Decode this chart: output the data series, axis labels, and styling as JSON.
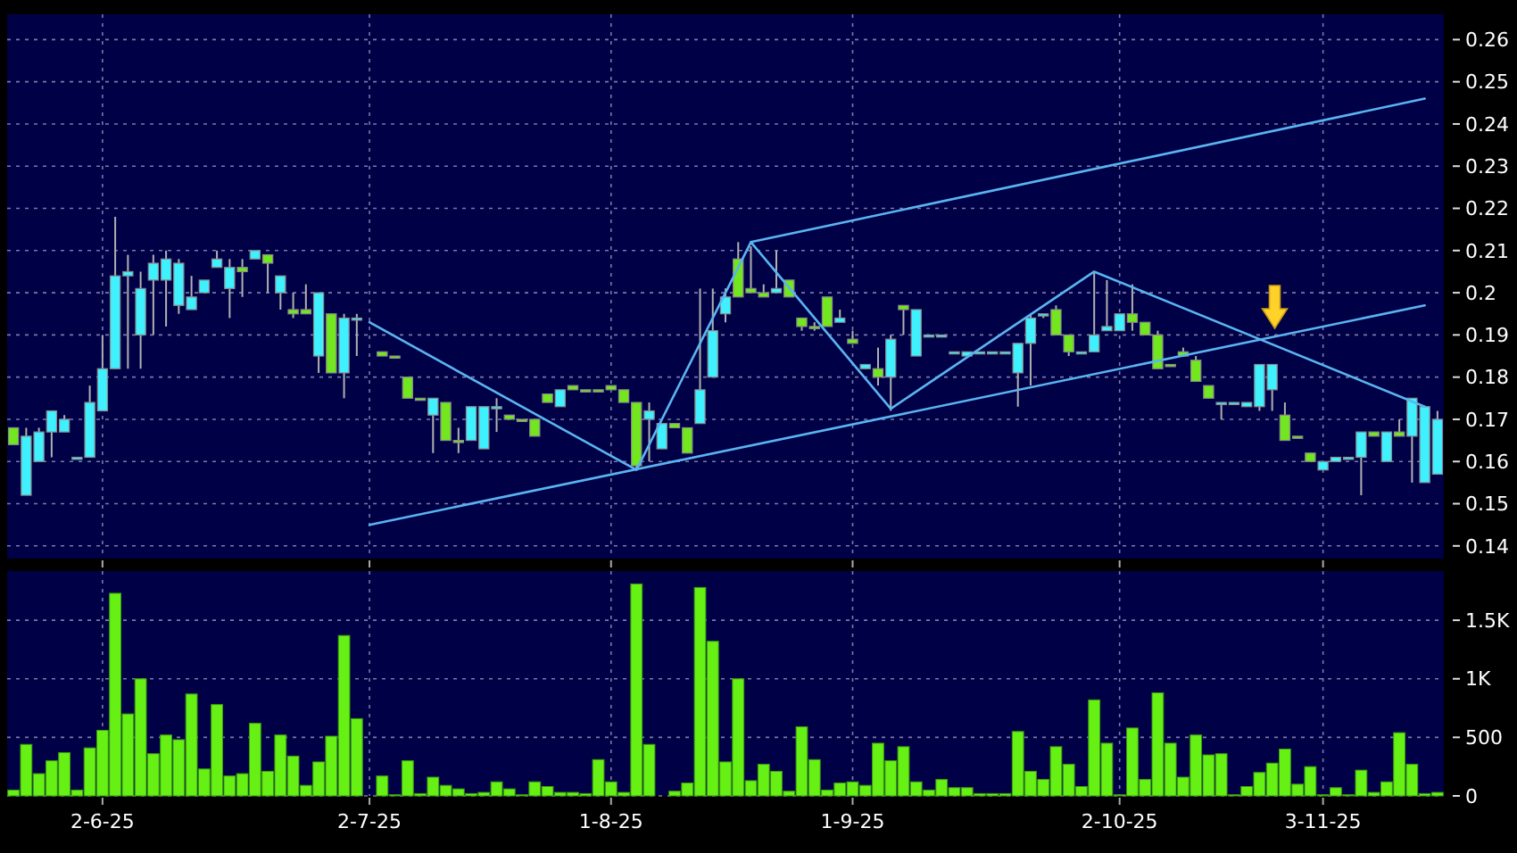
{
  "chart_data": [
    {
      "type": "candlestick",
      "tick_labels": "y",
      "grid": true,
      "categories": [
        null,
        null,
        null,
        null,
        null,
        null,
        null,
        null,
        null,
        null,
        null,
        null,
        null,
        null,
        null,
        null,
        null,
        null,
        null,
        null,
        null,
        null,
        null,
        null,
        null,
        null,
        null,
        null,
        null,
        null,
        null,
        null,
        null,
        null,
        null,
        null,
        null,
        null,
        null,
        null,
        null,
        null,
        null,
        null,
        null,
        null,
        null,
        null,
        null,
        null,
        null,
        null,
        null,
        null,
        null,
        null,
        null,
        null,
        null,
        null,
        null,
        null,
        null,
        null,
        null,
        null,
        null,
        null,
        null,
        null,
        null,
        null,
        null,
        null,
        null,
        null,
        null,
        null,
        null,
        null,
        null,
        null,
        null,
        null,
        null,
        null,
        null,
        null,
        null,
        null,
        null,
        null,
        null,
        null,
        null,
        null,
        null,
        null,
        null,
        null,
        null,
        null,
        null,
        null,
        null,
        null,
        null,
        null,
        null,
        null,
        null,
        null,
        null
      ],
      "ylim": [
        0.137,
        0.266
      ],
      "yticks": [
        0.14,
        0.15,
        0.16,
        0.17,
        0.18,
        0.19,
        0.2,
        0.21,
        0.22,
        0.23,
        0.24,
        0.25,
        0.26
      ],
      "colors": [
        "#72e61e",
        "#3ff0ff",
        "#3ff0ff",
        "#3ff0ff",
        "#3ff0ff",
        "#3ff0ff",
        "#3ff0ff",
        "#3ff0ff",
        "#3ff0ff",
        "#3ff0ff",
        "#3ff0ff",
        "#3ff0ff",
        "#3ff0ff",
        "#3ff0ff",
        "#3ff0ff",
        "#3ff0ff",
        "#3ff0ff",
        "#3ff0ff",
        "#72e61e",
        "#3ff0ff",
        "#72e61e",
        "#3ff0ff",
        "#72e61e",
        "#72e61e",
        "#3ff0ff",
        "#72e61e",
        "#3ff0ff",
        "#3ff0ff",
        null,
        "#72e61e",
        "#72e61e",
        "#72e61e",
        "#72e61e",
        "#3ff0ff",
        "#72e61e",
        "#72e61e",
        "#3ff0ff",
        "#3ff0ff",
        "#3ff0ff",
        "#72e61e",
        "#72e61e",
        "#72e61e",
        "#72e61e",
        "#3ff0ff",
        "#72e61e",
        "#72e61e",
        "#72e61e",
        "#72e61e",
        "#72e61e",
        "#72e61e",
        "#3ff0ff",
        "#3ff0ff",
        "#72e61e",
        "#72e61e",
        "#3ff0ff",
        "#3ff0ff",
        "#3ff0ff",
        "#72e61e",
        "#72e61e",
        "#72e61e",
        "#3ff0ff",
        "#72e61e",
        "#72e61e",
        "#72e61e",
        "#72e61e",
        "#3ff0ff",
        "#72e61e",
        "#3ff0ff",
        "#72e61e",
        "#3ff0ff",
        "#72e61e",
        "#3ff0ff",
        "#3ff0ff",
        "#3ff0ff",
        "#3ff0ff",
        "#3ff0ff",
        "#3ff0ff",
        "#3ff0ff",
        "#3ff0ff",
        "#3ff0ff",
        "#3ff0ff",
        "#3ff0ff",
        "#72e61e",
        "#72e61e",
        "#3ff0ff",
        "#3ff0ff",
        "#3ff0ff",
        "#3ff0ff",
        "#72e61e",
        "#72e61e",
        "#72e61e",
        "#72e61e",
        "#72e61e",
        "#72e61e",
        "#72e61e",
        "#3ff0ff",
        "#3ff0ff",
        "#3ff0ff",
        "#3ff0ff",
        "#3ff0ff",
        "#72e61e",
        "#72e61e",
        "#72e61e",
        "#3ff0ff",
        "#3ff0ff",
        "#3ff0ff",
        "#3ff0ff",
        "#72e61e",
        "#3ff0ff",
        "#72e61e",
        "#3ff0ff",
        "#3ff0ff",
        "#3ff0ff"
      ],
      "ohlc": [
        [
          0.168,
          0.168,
          0.164,
          0.164
        ],
        [
          0.152,
          0.168,
          0.152,
          0.166
        ],
        [
          0.16,
          0.168,
          0.16,
          0.167
        ],
        [
          0.167,
          0.172,
          0.161,
          0.172
        ],
        [
          0.167,
          0.171,
          0.167,
          0.17
        ],
        [
          0.161,
          0.161,
          0.161,
          0.161
        ],
        [
          0.161,
          0.178,
          0.161,
          0.174
        ],
        [
          0.172,
          0.19,
          0.172,
          0.182
        ],
        [
          0.182,
          0.218,
          0.182,
          0.204
        ],
        [
          0.204,
          0.209,
          0.182,
          0.205
        ],
        [
          0.19,
          0.205,
          0.182,
          0.201
        ],
        [
          0.203,
          0.209,
          0.19,
          0.207
        ],
        [
          0.203,
          0.21,
          0.192,
          0.208
        ],
        [
          0.197,
          0.208,
          0.195,
          0.207
        ],
        [
          0.196,
          0.204,
          0.196,
          0.199
        ],
        [
          0.2,
          0.203,
          0.2,
          0.203
        ],
        [
          0.206,
          0.21,
          0.206,
          0.208
        ],
        [
          0.201,
          0.208,
          0.194,
          0.206
        ],
        [
          0.206,
          0.208,
          0.199,
          0.205
        ],
        [
          0.208,
          0.21,
          0.208,
          0.21
        ],
        [
          0.209,
          0.209,
          0.2,
          0.207
        ],
        [
          0.2,
          0.204,
          0.196,
          0.204
        ],
        [
          0.196,
          0.2,
          0.194,
          0.195
        ],
        [
          0.196,
          0.202,
          0.195,
          0.195
        ],
        [
          0.185,
          0.2,
          0.181,
          0.2
        ],
        [
          0.195,
          0.195,
          0.181,
          0.181
        ],
        [
          0.181,
          0.195,
          0.175,
          0.194
        ],
        [
          0.194,
          0.195,
          0.185,
          0.194
        ],
        null,
        [
          0.186,
          0.186,
          0.185,
          0.185
        ],
        [
          0.185,
          0.185,
          0.185,
          0.185
        ],
        [
          0.18,
          0.18,
          0.175,
          0.175
        ],
        [
          0.175,
          0.175,
          0.175,
          0.175
        ],
        [
          0.171,
          0.175,
          0.162,
          0.175
        ],
        [
          0.174,
          0.174,
          0.165,
          0.165
        ],
        [
          0.165,
          0.168,
          0.162,
          0.165
        ],
        [
          0.165,
          0.173,
          0.165,
          0.173
        ],
        [
          0.163,
          0.173,
          0.163,
          0.173
        ],
        [
          0.173,
          0.175,
          0.167,
          0.173
        ],
        [
          0.171,
          0.171,
          0.17,
          0.17
        ],
        [
          0.17,
          0.17,
          0.17,
          0.17
        ],
        [
          0.17,
          0.17,
          0.166,
          0.166
        ],
        [
          0.176,
          0.176,
          0.174,
          0.174
        ],
        [
          0.173,
          0.177,
          0.173,
          0.177
        ],
        [
          0.178,
          0.178,
          0.177,
          0.177
        ],
        [
          0.177,
          0.177,
          0.177,
          0.177
        ],
        [
          0.177,
          0.177,
          0.177,
          0.177
        ],
        [
          0.178,
          0.178,
          0.177,
          0.177
        ],
        [
          0.177,
          0.177,
          0.174,
          0.174
        ],
        [
          0.174,
          0.174,
          0.158,
          0.159
        ],
        [
          0.17,
          0.174,
          0.16,
          0.172
        ],
        [
          0.163,
          0.169,
          0.163,
          0.169
        ],
        [
          0.169,
          0.169,
          0.168,
          0.168
        ],
        [
          0.168,
          0.168,
          0.162,
          0.162
        ],
        [
          0.169,
          0.201,
          0.169,
          0.177
        ],
        [
          0.18,
          0.201,
          0.18,
          0.191
        ],
        [
          0.195,
          0.201,
          0.193,
          0.199
        ],
        [
          0.208,
          0.212,
          0.199,
          0.199
        ],
        [
          0.201,
          0.211,
          0.2,
          0.2
        ],
        [
          0.2,
          0.202,
          0.199,
          0.199
        ],
        [
          0.2,
          0.21,
          0.2,
          0.201
        ],
        [
          0.203,
          0.203,
          0.199,
          0.199
        ],
        [
          0.194,
          0.194,
          0.191,
          0.192
        ],
        [
          0.192,
          0.193,
          0.191,
          0.192
        ],
        [
          0.199,
          0.199,
          0.192,
          0.192
        ],
        [
          0.193,
          0.196,
          0.193,
          0.194
        ],
        [
          0.189,
          0.191,
          0.188,
          0.188
        ],
        [
          0.182,
          0.183,
          0.182,
          0.183
        ],
        [
          0.182,
          0.187,
          0.178,
          0.18
        ],
        [
          0.18,
          0.19,
          0.172,
          0.189
        ],
        [
          0.197,
          0.197,
          0.19,
          0.196
        ],
        [
          0.185,
          0.196,
          0.185,
          0.196
        ],
        [
          0.19,
          0.19,
          0.19,
          0.19
        ],
        [
          0.19,
          0.19,
          0.19,
          0.19
        ],
        [
          0.186,
          0.186,
          0.186,
          0.186
        ],
        [
          0.185,
          0.186,
          0.185,
          0.186
        ],
        [
          0.186,
          0.186,
          0.186,
          0.186
        ],
        [
          0.186,
          0.186,
          0.186,
          0.186
        ],
        [
          0.186,
          0.186,
          0.186,
          0.186
        ],
        [
          0.181,
          0.188,
          0.173,
          0.188
        ],
        [
          0.188,
          0.195,
          0.178,
          0.194
        ],
        [
          0.195,
          0.195,
          0.194,
          0.195
        ],
        [
          0.196,
          0.197,
          0.19,
          0.19
        ],
        [
          0.19,
          0.19,
          0.185,
          0.186
        ],
        [
          0.186,
          0.186,
          0.186,
          0.186
        ],
        [
          0.186,
          0.205,
          0.186,
          0.19
        ],
        [
          0.191,
          0.203,
          0.191,
          0.192
        ],
        [
          0.191,
          0.195,
          0.191,
          0.195
        ],
        [
          0.195,
          0.202,
          0.191,
          0.193
        ],
        [
          0.193,
          0.193,
          0.19,
          0.19
        ],
        [
          0.19,
          0.191,
          0.182,
          0.182
        ],
        [
          0.183,
          0.183,
          0.183,
          0.183
        ],
        [
          0.186,
          0.187,
          0.185,
          0.185
        ],
        [
          0.184,
          0.185,
          0.179,
          0.179
        ],
        [
          0.178,
          0.178,
          0.175,
          0.175
        ],
        [
          0.174,
          0.174,
          0.17,
          0.174
        ],
        [
          0.174,
          0.174,
          0.174,
          0.174
        ],
        [
          0.173,
          0.174,
          0.173,
          0.174
        ],
        [
          0.173,
          0.183,
          0.172,
          0.183
        ],
        [
          0.177,
          0.183,
          0.172,
          0.183
        ],
        [
          0.171,
          0.174,
          0.165,
          0.165
        ],
        [
          0.166,
          0.166,
          0.166,
          0.166
        ],
        [
          0.162,
          0.162,
          0.16,
          0.16
        ],
        [
          0.158,
          0.16,
          0.158,
          0.16
        ],
        [
          0.16,
          0.161,
          0.16,
          0.161
        ],
        [
          0.161,
          0.161,
          0.161,
          0.161
        ],
        [
          0.161,
          0.167,
          0.152,
          0.167
        ],
        [
          0.167,
          0.167,
          0.166,
          0.166
        ],
        [
          0.16,
          0.167,
          0.16,
          0.167
        ],
        [
          0.167,
          0.17,
          0.166,
          0.166
        ],
        [
          0.166,
          0.175,
          0.155,
          0.175
        ],
        [
          0.155,
          0.173,
          0.155,
          0.173
        ],
        [
          0.157,
          0.172,
          0.157,
          0.17
        ]
      ],
      "series": [
        {
          "type": "line",
          "color": "#5ab4f0",
          "values": [
            null,
            null,
            null,
            null,
            null,
            null,
            null,
            null,
            null,
            null,
            null,
            null,
            null,
            null,
            null,
            null,
            null,
            null,
            null,
            null,
            null,
            null,
            null,
            null,
            null,
            null,
            null,
            null,
            null,
            null,
            null,
            null,
            null,
            null,
            null,
            null,
            null,
            null,
            null,
            null,
            null,
            null,
            null,
            null,
            null,
            null,
            null,
            null,
            null,
            null,
            null,
            null,
            null,
            null,
            null,
            null,
            null,
            null,
            0.212,
            null,
            null,
            null,
            null,
            null,
            null,
            null,
            null,
            null,
            null,
            null,
            null,
            null,
            null,
            null,
            null,
            null,
            null,
            null,
            null,
            null,
            null,
            null,
            null,
            null,
            null,
            null,
            null,
            null,
            null,
            null,
            null,
            null,
            null,
            null,
            null,
            null,
            null,
            null,
            null,
            null,
            null,
            null,
            null,
            null,
            null,
            null,
            null,
            null,
            null,
            null,
            null,
            0.246,
            null
          ]
        },
        {
          "type": "line",
          "color": "#5ab4f0",
          "values": [
            null,
            null,
            null,
            null,
            null,
            null,
            null,
            null,
            null,
            null,
            null,
            null,
            null,
            null,
            null,
            null,
            null,
            null,
            null,
            null,
            null,
            null,
            null,
            null,
            null,
            null,
            null,
            null,
            0.145,
            null,
            null,
            null,
            null,
            null,
            null,
            null,
            null,
            null,
            null,
            null,
            null,
            null,
            null,
            null,
            null,
            null,
            null,
            null,
            null,
            null,
            null,
            null,
            null,
            null,
            null,
            null,
            null,
            null,
            null,
            null,
            null,
            null,
            null,
            null,
            null,
            null,
            null,
            null,
            null,
            null,
            null,
            null,
            null,
            null,
            null,
            null,
            null,
            null,
            null,
            null,
            null,
            null,
            null,
            null,
            null,
            null,
            null,
            null,
            null,
            null,
            null,
            null,
            null,
            null,
            null,
            null,
            null,
            null,
            null,
            null,
            null,
            null,
            null,
            null,
            null,
            null,
            null,
            null,
            null,
            null,
            null,
            0.197,
            null
          ]
        },
        {
          "type": "line",
          "color": "#5ab4f0",
          "values": [
            null,
            null,
            null,
            null,
            null,
            null,
            null,
            null,
            null,
            null,
            null,
            null,
            null,
            null,
            null,
            null,
            null,
            null,
            null,
            null,
            null,
            null,
            null,
            null,
            null,
            null,
            null,
            null,
            0.193,
            null,
            null,
            null,
            null,
            null,
            null,
            null,
            null,
            null,
            null,
            null,
            null,
            null,
            null,
            null,
            null,
            null,
            null,
            null,
            null,
            0.158,
            null,
            null,
            null,
            null,
            null,
            null,
            null,
            null,
            0.212,
            null,
            null,
            null,
            null,
            null,
            null,
            null,
            null,
            null,
            null,
            0.1725,
            null,
            null,
            null,
            null,
            null,
            null,
            null,
            null,
            null,
            null,
            null,
            null,
            null,
            null,
            null,
            0.205,
            null,
            null,
            null,
            null,
            null,
            null,
            null,
            null,
            null,
            null,
            null,
            null,
            null,
            null,
            null,
            null,
            null,
            null,
            null,
            null,
            null,
            null,
            null,
            null,
            null,
            0.173,
            null
          ]
        }
      ]
    },
    {
      "type": "bar",
      "grid": true,
      "categories": [
        null,
        null,
        null,
        null,
        null,
        null,
        null,
        "2-6-25",
        null,
        null,
        null,
        null,
        null,
        null,
        null,
        null,
        null,
        null,
        null,
        null,
        null,
        null,
        null,
        null,
        null,
        null,
        null,
        null,
        "2-7-25",
        null,
        null,
        null,
        null,
        null,
        null,
        null,
        null,
        null,
        null,
        null,
        null,
        null,
        null,
        null,
        null,
        null,
        null,
        "1-8-25",
        null,
        null,
        null,
        null,
        null,
        null,
        null,
        null,
        null,
        null,
        null,
        null,
        null,
        null,
        null,
        null,
        null,
        null,
        "1-9-25",
        null,
        null,
        null,
        null,
        null,
        null,
        null,
        null,
        null,
        null,
        null,
        null,
        null,
        null,
        null,
        null,
        null,
        null,
        null,
        null,
        "2-10-25",
        null,
        null,
        null,
        null,
        null,
        null,
        null,
        null,
        null,
        null,
        null,
        null,
        null,
        null,
        null,
        "3-11-25",
        null,
        null,
        null,
        null,
        null,
        null,
        null,
        null,
        null
      ],
      "ylim": [
        0,
        1920
      ],
      "yticks": [
        0,
        500,
        {
          "value": 1000,
          "label": "1K"
        },
        {
          "value": 1500,
          "label": "1.5K"
        }
      ],
      "color": "#66f014",
      "values": [
        50,
        440,
        190,
        300,
        370,
        50,
        410,
        560,
        1730,
        700,
        1000,
        360,
        520,
        480,
        870,
        230,
        780,
        170,
        190,
        620,
        210,
        520,
        340,
        90,
        290,
        510,
        1370,
        660,
        0,
        170,
        10,
        300,
        20,
        160,
        90,
        60,
        20,
        30,
        120,
        60,
        10,
        120,
        80,
        30,
        30,
        20,
        310,
        120,
        30,
        1810,
        440,
        0,
        40,
        110,
        1780,
        1320,
        290,
        1000,
        130,
        270,
        210,
        40,
        590,
        310,
        50,
        110,
        120,
        90,
        450,
        300,
        420,
        120,
        50,
        140,
        70,
        70,
        20,
        20,
        20,
        550,
        210,
        140,
        420,
        270,
        80,
        820,
        450,
        10,
        580,
        140,
        880,
        450,
        160,
        520,
        350,
        360,
        10,
        80,
        200,
        280,
        400,
        100,
        250,
        10,
        70,
        10,
        220,
        30,
        120,
        540,
        270,
        20,
        30
      ]
    }
  ]
}
